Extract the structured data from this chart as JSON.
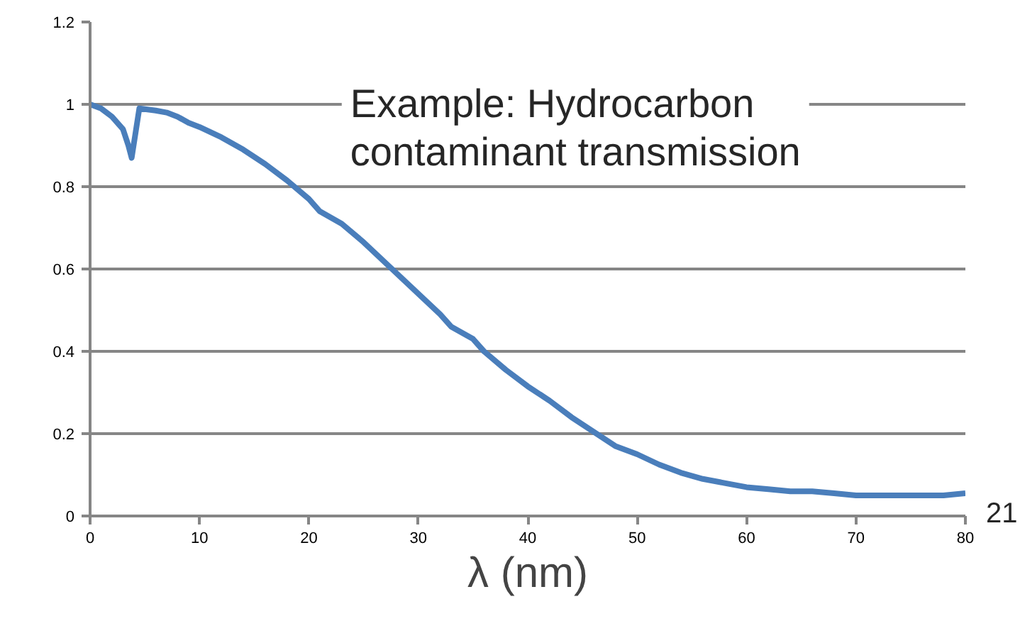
{
  "chart_data": {
    "type": "line",
    "xlabel": "λ (nm)",
    "annotations": [
      {
        "text": "Example: Hydrocarbon\ncontaminant transmission"
      },
      {
        "text": "21"
      }
    ],
    "x": [
      0,
      1,
      2,
      3,
      3.5,
      3.8,
      4.5,
      6,
      7,
      8,
      9,
      10,
      12,
      14,
      16,
      18,
      20,
      21,
      23,
      25,
      26,
      28,
      30,
      32,
      33,
      35,
      36,
      38,
      40,
      42,
      44,
      46,
      48,
      50,
      52,
      54,
      56,
      58,
      60,
      62,
      64,
      66,
      68,
      70,
      75,
      78,
      80
    ],
    "series": [
      {
        "color": "#4a7ebb",
        "values": [
          1.0,
          0.99,
          0.97,
          0.94,
          0.9,
          0.87,
          0.99,
          0.985,
          0.98,
          0.97,
          0.955,
          0.945,
          0.92,
          0.89,
          0.855,
          0.815,
          0.77,
          0.74,
          0.71,
          0.665,
          0.64,
          0.59,
          0.54,
          0.49,
          0.46,
          0.43,
          0.4,
          0.355,
          0.315,
          0.28,
          0.24,
          0.205,
          0.17,
          0.15,
          0.125,
          0.105,
          0.09,
          0.08,
          0.07,
          0.065,
          0.06,
          0.06,
          0.055,
          0.05,
          0.05,
          0.05,
          0.055
        ]
      }
    ],
    "xlim": [
      0,
      80
    ],
    "ylim": [
      0,
      1.2
    ],
    "xticks": [
      0,
      10,
      20,
      30,
      40,
      50,
      60,
      70,
      80
    ],
    "yticks": [
      0,
      0.2,
      0.4,
      0.6,
      0.8,
      1,
      1.2
    ],
    "grid": "y",
    "marker": "none",
    "line_style": "solid"
  }
}
